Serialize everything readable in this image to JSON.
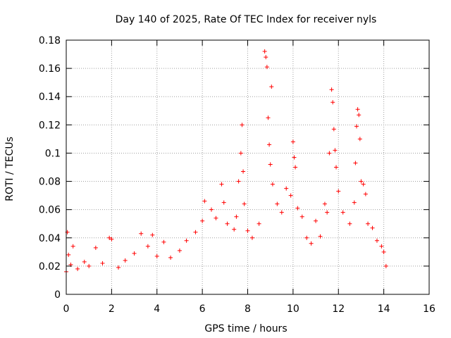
{
  "chart_data": {
    "type": "scatter",
    "title": "Day 140 of 2025, Rate Of TEC Index for receiver nyls",
    "xlabel": "GPS time / hours",
    "ylabel": "ROTI / TECUs",
    "xlim": [
      0,
      16
    ],
    "ylim": [
      0,
      0.18
    ],
    "x_ticks": [
      "0",
      "2",
      "4",
      "6",
      "8",
      "10",
      "12",
      "14",
      "16"
    ],
    "y_ticks": [
      "0",
      "0.02",
      "0.04",
      "0.06",
      "0.08",
      "0.1",
      "0.12",
      "0.14",
      "0.16",
      "0.18"
    ],
    "grid": true,
    "marker": "+",
    "color": "#ff0000",
    "series": [
      {
        "name": "ROTI",
        "points": [
          [
            0.0,
            0.016
          ],
          [
            0.05,
            0.044
          ],
          [
            0.1,
            0.028
          ],
          [
            0.2,
            0.021
          ],
          [
            0.3,
            0.034
          ],
          [
            0.5,
            0.018
          ],
          [
            0.8,
            0.023
          ],
          [
            1.0,
            0.02
          ],
          [
            1.3,
            0.033
          ],
          [
            1.6,
            0.022
          ],
          [
            1.9,
            0.04
          ],
          [
            2.0,
            0.039
          ],
          [
            2.3,
            0.019
          ],
          [
            2.6,
            0.024
          ],
          [
            3.0,
            0.029
          ],
          [
            3.3,
            0.043
          ],
          [
            3.6,
            0.034
          ],
          [
            3.8,
            0.042
          ],
          [
            4.0,
            0.027
          ],
          [
            4.3,
            0.037
          ],
          [
            4.6,
            0.026
          ],
          [
            5.0,
            0.031
          ],
          [
            5.3,
            0.038
          ],
          [
            5.7,
            0.044
          ],
          [
            6.0,
            0.052
          ],
          [
            6.1,
            0.066
          ],
          [
            6.4,
            0.06
          ],
          [
            6.6,
            0.054
          ],
          [
            6.85,
            0.078
          ],
          [
            6.95,
            0.065
          ],
          [
            7.1,
            0.05
          ],
          [
            7.4,
            0.046
          ],
          [
            7.5,
            0.055
          ],
          [
            7.6,
            0.08
          ],
          [
            7.7,
            0.1
          ],
          [
            7.75,
            0.12
          ],
          [
            7.8,
            0.087
          ],
          [
            7.85,
            0.064
          ],
          [
            8.0,
            0.045
          ],
          [
            8.2,
            0.04
          ],
          [
            8.5,
            0.05
          ],
          [
            8.75,
            0.172
          ],
          [
            8.8,
            0.168
          ],
          [
            8.85,
            0.161
          ],
          [
            8.9,
            0.125
          ],
          [
            8.95,
            0.106
          ],
          [
            9.0,
            0.092
          ],
          [
            9.05,
            0.147
          ],
          [
            9.1,
            0.078
          ],
          [
            9.3,
            0.064
          ],
          [
            9.5,
            0.058
          ],
          [
            9.7,
            0.075
          ],
          [
            9.9,
            0.07
          ],
          [
            10.0,
            0.108
          ],
          [
            10.05,
            0.097
          ],
          [
            10.1,
            0.09
          ],
          [
            10.2,
            0.061
          ],
          [
            10.4,
            0.055
          ],
          [
            10.6,
            0.04
          ],
          [
            10.8,
            0.036
          ],
          [
            11.0,
            0.052
          ],
          [
            11.2,
            0.041
          ],
          [
            11.4,
            0.064
          ],
          [
            11.5,
            0.058
          ],
          [
            11.6,
            0.1
          ],
          [
            11.7,
            0.145
          ],
          [
            11.75,
            0.136
          ],
          [
            11.8,
            0.117
          ],
          [
            11.85,
            0.102
          ],
          [
            11.9,
            0.09
          ],
          [
            12.0,
            0.073
          ],
          [
            12.2,
            0.058
          ],
          [
            12.5,
            0.05
          ],
          [
            12.7,
            0.065
          ],
          [
            12.75,
            0.093
          ],
          [
            12.8,
            0.119
          ],
          [
            12.85,
            0.131
          ],
          [
            12.9,
            0.127
          ],
          [
            12.95,
            0.11
          ],
          [
            13.0,
            0.08
          ],
          [
            13.1,
            0.078
          ],
          [
            13.2,
            0.071
          ],
          [
            13.3,
            0.05
          ],
          [
            13.5,
            0.047
          ],
          [
            13.7,
            0.038
          ],
          [
            13.9,
            0.034
          ],
          [
            14.0,
            0.03
          ],
          [
            14.1,
            0.02
          ]
        ]
      }
    ]
  }
}
